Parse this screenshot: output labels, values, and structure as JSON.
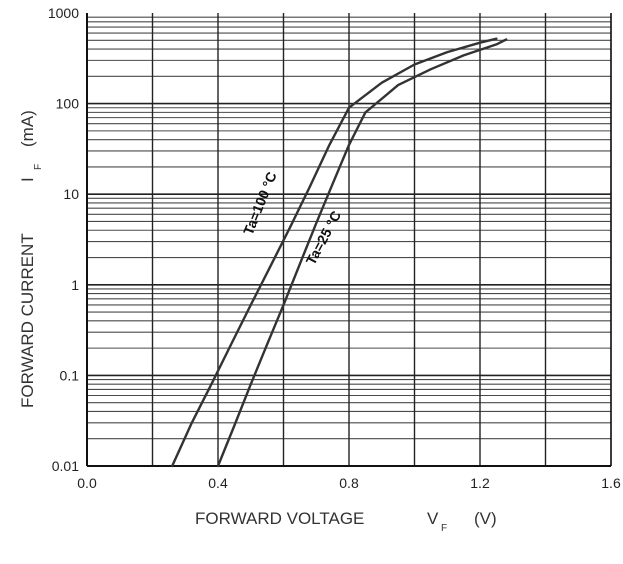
{
  "chart_data": {
    "type": "line",
    "title": "",
    "x_scale": "linear",
    "y_scale": "log",
    "xlim": [
      0.0,
      1.6
    ],
    "ylim": [
      0.01,
      1000
    ],
    "x_ticks": [
      "0.0",
      "0.4",
      "0.8",
      "1.2",
      "1.6"
    ],
    "y_ticks": [
      "0.01",
      "0.1",
      "1",
      "10",
      "100",
      "1000"
    ],
    "xlabel": {
      "main": "FORWARD VOLTAGE",
      "symbol": "V",
      "subscript": "F",
      "unit": "(V)"
    },
    "ylabel": {
      "main": "FORWARD CURRENT",
      "symbol": "I",
      "subscript": "F",
      "unit": "(mA)"
    },
    "grid": true,
    "series": [
      {
        "name": "Ta=100 °C",
        "x": [
          0.26,
          0.32,
          0.38,
          0.44,
          0.5,
          0.56,
          0.62,
          0.68,
          0.74,
          0.8,
          0.9,
          1.0,
          1.1,
          1.2,
          1.25
        ],
        "y": [
          0.01,
          0.03,
          0.08,
          0.22,
          0.6,
          1.6,
          4.3,
          12,
          35,
          90,
          170,
          270,
          370,
          470,
          520
        ]
      },
      {
        "name": "Ta=25 °C",
        "x": [
          0.4,
          0.45,
          0.5,
          0.55,
          0.6,
          0.65,
          0.7,
          0.75,
          0.8,
          0.85,
          0.95,
          1.05,
          1.15,
          1.25,
          1.28
        ],
        "y": [
          0.01,
          0.028,
          0.08,
          0.22,
          0.6,
          1.7,
          4.8,
          13,
          35,
          80,
          160,
          240,
          340,
          450,
          510
        ]
      }
    ],
    "annotations": [
      "Ta=100 °C",
      "Ta=25 °C"
    ],
    "colors": {
      "curve": "#333333",
      "grid": "#222222",
      "minor_grid": "#4a4a4a"
    }
  }
}
